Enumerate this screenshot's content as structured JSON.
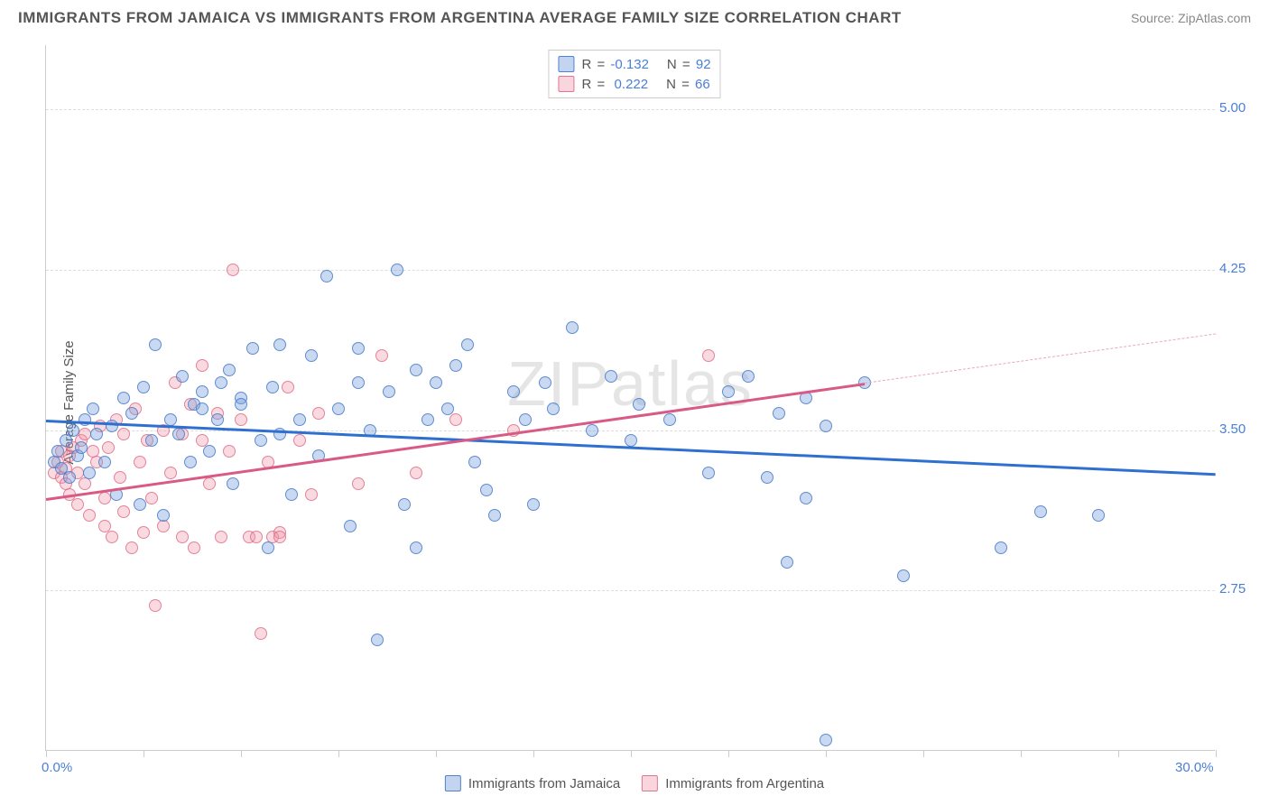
{
  "title": "IMMIGRANTS FROM JAMAICA VS IMMIGRANTS FROM ARGENTINA AVERAGE FAMILY SIZE CORRELATION CHART",
  "source": "Source: ZipAtlas.com",
  "ylabel": "Average Family Size",
  "watermark": "ZIPatlas",
  "chart": {
    "type": "scatter",
    "xlim": [
      0,
      30
    ],
    "ylim": [
      2.0,
      5.3
    ],
    "xtick_positions": [
      0,
      2.5,
      5,
      7.5,
      10,
      12.5,
      15,
      17.5,
      20,
      22.5,
      25,
      27.5,
      30
    ],
    "xtick_labels": {
      "start": "0.0%",
      "end": "30.0%"
    },
    "ytick_positions": [
      2.75,
      3.5,
      4.25,
      5.0
    ],
    "ytick_labels": [
      "2.75",
      "3.50",
      "4.25",
      "5.00"
    ],
    "grid_color": "#dddddd",
    "background_color": "#ffffff",
    "series": {
      "jamaica": {
        "label": "Immigrants from Jamaica",
        "color_fill": "rgba(120,160,220,0.4)",
        "color_stroke": "rgba(70,120,200,0.8)",
        "R": "-0.132",
        "N": "92",
        "trend": {
          "x1": 0,
          "y1": 3.55,
          "x2": 30,
          "y2": 3.3,
          "color": "#2f6fd0"
        },
        "points": [
          [
            0.2,
            3.35
          ],
          [
            0.3,
            3.4
          ],
          [
            0.4,
            3.32
          ],
          [
            0.5,
            3.45
          ],
          [
            0.6,
            3.28
          ],
          [
            0.7,
            3.5
          ],
          [
            0.8,
            3.38
          ],
          [
            0.9,
            3.42
          ],
          [
            1.0,
            3.55
          ],
          [
            1.1,
            3.3
          ],
          [
            1.2,
            3.6
          ],
          [
            1.3,
            3.48
          ],
          [
            1.5,
            3.35
          ],
          [
            1.7,
            3.52
          ],
          [
            1.8,
            3.2
          ],
          [
            2.0,
            3.65
          ],
          [
            2.2,
            3.58
          ],
          [
            2.4,
            3.15
          ],
          [
            2.5,
            3.7
          ],
          [
            2.7,
            3.45
          ],
          [
            2.8,
            3.9
          ],
          [
            3.0,
            3.1
          ],
          [
            3.2,
            3.55
          ],
          [
            3.4,
            3.48
          ],
          [
            3.5,
            3.75
          ],
          [
            3.7,
            3.35
          ],
          [
            3.8,
            3.62
          ],
          [
            4.0,
            3.68
          ],
          [
            4.0,
            3.6
          ],
          [
            4.2,
            3.4
          ],
          [
            4.4,
            3.55
          ],
          [
            4.5,
            3.72
          ],
          [
            4.7,
            3.78
          ],
          [
            4.8,
            3.25
          ],
          [
            5.0,
            3.65
          ],
          [
            5.0,
            3.62
          ],
          [
            5.3,
            3.88
          ],
          [
            5.5,
            3.45
          ],
          [
            5.7,
            2.95
          ],
          [
            5.8,
            3.7
          ],
          [
            6.0,
            3.48
          ],
          [
            6.0,
            3.9
          ],
          [
            6.3,
            3.2
          ],
          [
            6.5,
            3.55
          ],
          [
            6.8,
            3.85
          ],
          [
            7.0,
            3.38
          ],
          [
            7.2,
            4.22
          ],
          [
            7.5,
            3.6
          ],
          [
            7.8,
            3.05
          ],
          [
            8.0,
            3.72
          ],
          [
            8.0,
            3.88
          ],
          [
            8.3,
            3.5
          ],
          [
            8.5,
            2.52
          ],
          [
            8.8,
            3.68
          ],
          [
            9.0,
            4.25
          ],
          [
            9.2,
            3.15
          ],
          [
            9.5,
            3.78
          ],
          [
            9.5,
            2.95
          ],
          [
            9.8,
            3.55
          ],
          [
            10.0,
            3.72
          ],
          [
            10.3,
            3.6
          ],
          [
            10.5,
            3.8
          ],
          [
            10.8,
            3.9
          ],
          [
            11.0,
            3.35
          ],
          [
            11.3,
            3.22
          ],
          [
            11.5,
            3.1
          ],
          [
            12.0,
            3.68
          ],
          [
            12.3,
            3.55
          ],
          [
            12.5,
            3.15
          ],
          [
            12.8,
            3.72
          ],
          [
            13.0,
            3.6
          ],
          [
            13.5,
            3.98
          ],
          [
            14.0,
            3.5
          ],
          [
            14.5,
            3.75
          ],
          [
            15.0,
            3.45
          ],
          [
            15.2,
            3.62
          ],
          [
            16.0,
            3.55
          ],
          [
            17.0,
            3.3
          ],
          [
            17.5,
            3.68
          ],
          [
            18.0,
            3.75
          ],
          [
            18.5,
            3.28
          ],
          [
            18.8,
            3.58
          ],
          [
            19.0,
            2.88
          ],
          [
            19.5,
            3.65
          ],
          [
            20.0,
            3.52
          ],
          [
            20.0,
            2.05
          ],
          [
            21.0,
            3.72
          ],
          [
            22.0,
            2.82
          ],
          [
            24.5,
            2.95
          ],
          [
            25.5,
            3.12
          ],
          [
            27.0,
            3.1
          ],
          [
            19.5,
            3.18
          ]
        ]
      },
      "argentina": {
        "label": "Immigrants from Argentina",
        "color_fill": "rgba(240,150,170,0.35)",
        "color_stroke": "rgba(220,100,130,0.75)",
        "R": "0.222",
        "N": "66",
        "trend": {
          "x1": 0,
          "y1": 3.18,
          "x2": 21,
          "y2": 3.72,
          "color": "#d85a85"
        },
        "trend_dash": {
          "x1": 21,
          "y1": 3.72,
          "x2": 30,
          "y2": 3.95,
          "color": "#e8a8bc"
        },
        "points": [
          [
            0.2,
            3.3
          ],
          [
            0.3,
            3.35
          ],
          [
            0.4,
            3.28
          ],
          [
            0.4,
            3.4
          ],
          [
            0.5,
            3.25
          ],
          [
            0.5,
            3.32
          ],
          [
            0.6,
            3.38
          ],
          [
            0.6,
            3.2
          ],
          [
            0.7,
            3.42
          ],
          [
            0.8,
            3.3
          ],
          [
            0.8,
            3.15
          ],
          [
            0.9,
            3.45
          ],
          [
            1.0,
            3.25
          ],
          [
            1.0,
            3.48
          ],
          [
            1.1,
            3.1
          ],
          [
            1.2,
            3.4
          ],
          [
            1.3,
            3.35
          ],
          [
            1.4,
            3.52
          ],
          [
            1.5,
            3.18
          ],
          [
            1.5,
            3.05
          ],
          [
            1.6,
            3.42
          ],
          [
            1.7,
            3.0
          ],
          [
            1.8,
            3.55
          ],
          [
            1.9,
            3.28
          ],
          [
            2.0,
            3.12
          ],
          [
            2.0,
            3.48
          ],
          [
            2.2,
            2.95
          ],
          [
            2.3,
            3.6
          ],
          [
            2.4,
            3.35
          ],
          [
            2.5,
            3.02
          ],
          [
            2.6,
            3.45
          ],
          [
            2.7,
            3.18
          ],
          [
            2.8,
            2.68
          ],
          [
            3.0,
            3.5
          ],
          [
            3.0,
            3.05
          ],
          [
            3.2,
            3.3
          ],
          [
            3.3,
            3.72
          ],
          [
            3.5,
            3.48
          ],
          [
            3.5,
            3.0
          ],
          [
            3.7,
            3.62
          ],
          [
            3.8,
            2.95
          ],
          [
            4.0,
            3.8
          ],
          [
            4.0,
            3.45
          ],
          [
            4.2,
            3.25
          ],
          [
            4.4,
            3.58
          ],
          [
            4.5,
            3.0
          ],
          [
            4.7,
            3.4
          ],
          [
            4.8,
            4.25
          ],
          [
            5.0,
            3.55
          ],
          [
            5.2,
            3.0
          ],
          [
            5.4,
            3.0
          ],
          [
            5.5,
            2.55
          ],
          [
            5.7,
            3.35
          ],
          [
            5.8,
            3.0
          ],
          [
            6.0,
            3.02
          ],
          [
            6.0,
            3.0
          ],
          [
            6.2,
            3.7
          ],
          [
            6.5,
            3.45
          ],
          [
            6.8,
            3.2
          ],
          [
            7.0,
            3.58
          ],
          [
            8.0,
            3.25
          ],
          [
            8.6,
            3.85
          ],
          [
            9.5,
            3.3
          ],
          [
            10.5,
            3.55
          ],
          [
            12.0,
            3.5
          ],
          [
            17.0,
            3.85
          ]
        ]
      }
    }
  },
  "legend": {
    "jamaica_label": "Immigrants from Jamaica",
    "argentina_label": "Immigrants from Argentina"
  }
}
